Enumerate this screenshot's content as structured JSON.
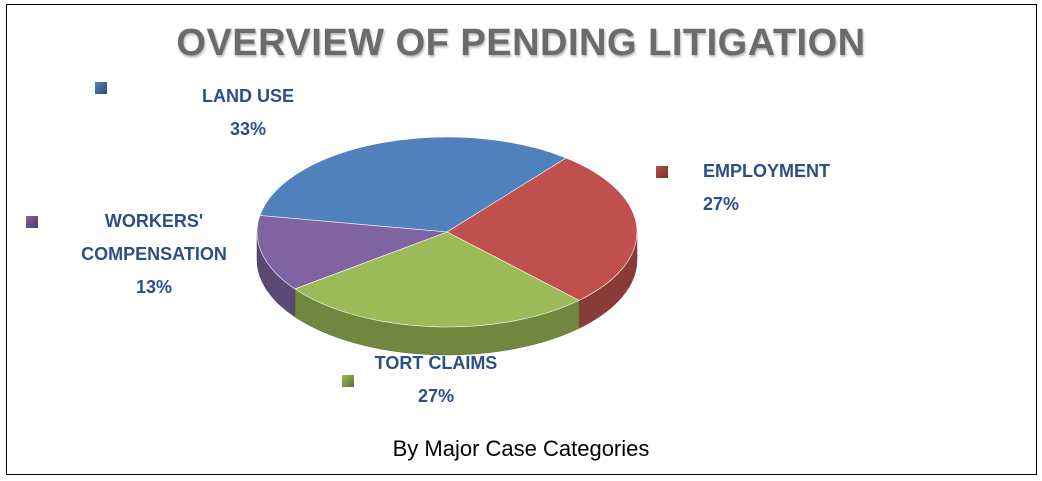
{
  "chart_data": {
    "type": "pie",
    "title": "OVERVIEW OF PENDING LITIGATION",
    "subtitle": "By Major Case Categories",
    "categories": [
      "LAND USE",
      "EMPLOYMENT",
      "TORT CLAIMS",
      "WORKERS' COMPENSATION"
    ],
    "values": [
      33,
      27,
      27,
      13
    ],
    "value_labels": [
      "33%",
      "27%",
      "27%",
      "13%"
    ],
    "colors": [
      "#4f81bd",
      "#c0504d",
      "#9bbb59",
      "#8064a2"
    ]
  }
}
